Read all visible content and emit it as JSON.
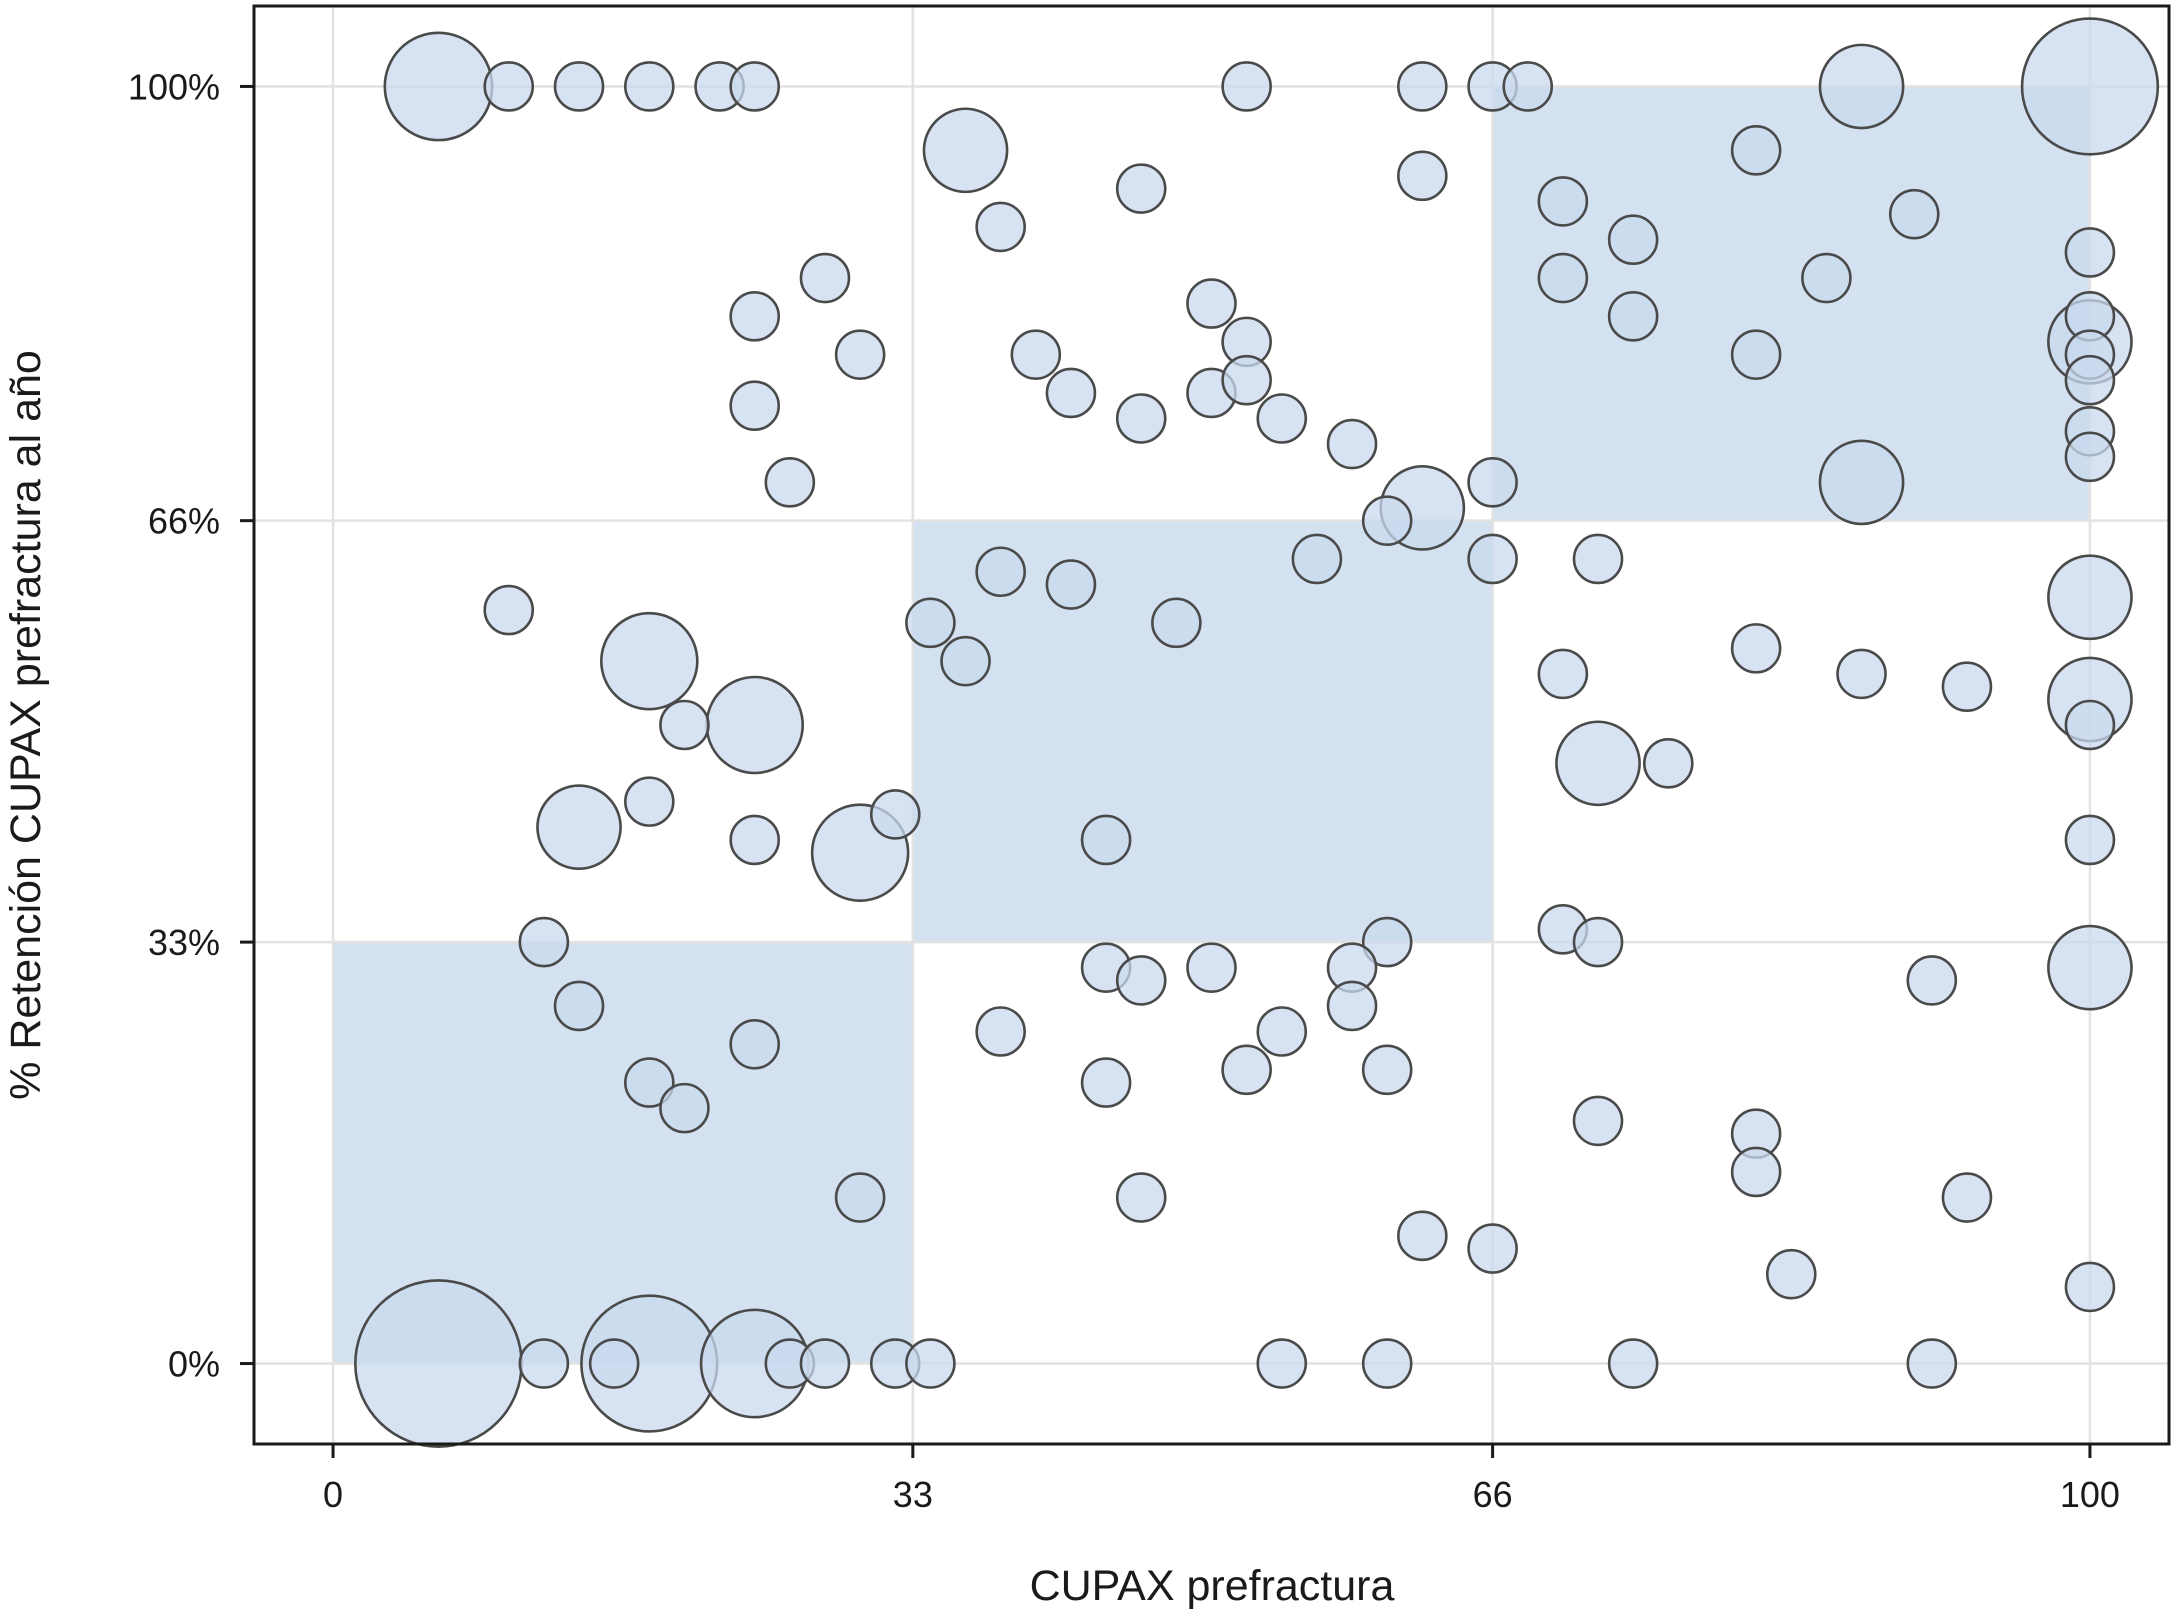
{
  "chart_data": {
    "type": "scatter",
    "subtype": "bubble",
    "xlabel": "CUPAX prefractura",
    "ylabel": "% Retención CUPAX prefractura al año",
    "xlim": [
      -4.5,
      104.5
    ],
    "ylim": [
      -6.3,
      106.3
    ],
    "x_ticks": [
      0,
      33,
      66,
      100
    ],
    "x_tick_labels": [
      "0",
      "33",
      "66",
      "100"
    ],
    "y_ticks": [
      0,
      33,
      66,
      100
    ],
    "y_tick_labels": [
      "0%",
      "33%",
      "66%",
      "100%"
    ],
    "grid": true,
    "legend": "none",
    "colors": {
      "bubble_fill": "#c9d9ee",
      "bubble_stroke": "#4a4a4a",
      "shaded_region": "#d4e1f1",
      "grid": "#e2e2e2"
    },
    "shaded_regions": [
      {
        "x": [
          0,
          33
        ],
        "y": [
          0,
          33
        ]
      },
      {
        "x": [
          33,
          66
        ],
        "y": [
          33,
          66
        ]
      },
      {
        "x": [
          66,
          100
        ],
        "y": [
          66,
          100
        ]
      }
    ],
    "points": [
      {
        "x": 6,
        "y": 100,
        "size": 5
      },
      {
        "x": 10,
        "y": 100,
        "size": 1
      },
      {
        "x": 14,
        "y": 100,
        "size": 1
      },
      {
        "x": 18,
        "y": 100,
        "size": 1
      },
      {
        "x": 22,
        "y": 100,
        "size": 1
      },
      {
        "x": 24,
        "y": 100,
        "size": 1
      },
      {
        "x": 52,
        "y": 100,
        "size": 1
      },
      {
        "x": 62,
        "y": 100,
        "size": 1
      },
      {
        "x": 66,
        "y": 100,
        "size": 1
      },
      {
        "x": 68,
        "y": 100,
        "size": 1
      },
      {
        "x": 87,
        "y": 100,
        "size": 3
      },
      {
        "x": 100,
        "y": 100,
        "size": 8
      },
      {
        "x": 36,
        "y": 95,
        "size": 3
      },
      {
        "x": 62,
        "y": 93,
        "size": 1
      },
      {
        "x": 81,
        "y": 95,
        "size": 1
      },
      {
        "x": 46,
        "y": 92,
        "size": 1
      },
      {
        "x": 70,
        "y": 91,
        "size": 1
      },
      {
        "x": 90,
        "y": 90,
        "size": 1
      },
      {
        "x": 38,
        "y": 89,
        "size": 1
      },
      {
        "x": 74,
        "y": 88,
        "size": 1
      },
      {
        "x": 100,
        "y": 87,
        "size": 1
      },
      {
        "x": 28,
        "y": 85,
        "size": 1
      },
      {
        "x": 70,
        "y": 85,
        "size": 1
      },
      {
        "x": 85,
        "y": 85,
        "size": 1
      },
      {
        "x": 24,
        "y": 82,
        "size": 1
      },
      {
        "x": 50,
        "y": 83,
        "size": 1
      },
      {
        "x": 74,
        "y": 82,
        "size": 1
      },
      {
        "x": 100,
        "y": 82,
        "size": 1
      },
      {
        "x": 100,
        "y": 80,
        "size": 3
      },
      {
        "x": 30,
        "y": 79,
        "size": 1
      },
      {
        "x": 40,
        "y": 79,
        "size": 1
      },
      {
        "x": 52,
        "y": 80,
        "size": 1
      },
      {
        "x": 81,
        "y": 79,
        "size": 1
      },
      {
        "x": 100,
        "y": 79,
        "size": 1
      },
      {
        "x": 42,
        "y": 76,
        "size": 1
      },
      {
        "x": 50,
        "y": 76,
        "size": 1
      },
      {
        "x": 52,
        "y": 77,
        "size": 1
      },
      {
        "x": 100,
        "y": 77,
        "size": 1
      },
      {
        "x": 24,
        "y": 75,
        "size": 1
      },
      {
        "x": 46,
        "y": 74,
        "size": 1
      },
      {
        "x": 54,
        "y": 74,
        "size": 1
      },
      {
        "x": 100,
        "y": 73,
        "size": 1
      },
      {
        "x": 58,
        "y": 72,
        "size": 1
      },
      {
        "x": 100,
        "y": 71,
        "size": 1
      },
      {
        "x": 66,
        "y": 69,
        "size": 1
      },
      {
        "x": 26,
        "y": 69,
        "size": 1
      },
      {
        "x": 87,
        "y": 69,
        "size": 3
      },
      {
        "x": 62,
        "y": 67,
        "size": 3
      },
      {
        "x": 60,
        "y": 66,
        "size": 1
      },
      {
        "x": 56,
        "y": 63,
        "size": 1
      },
      {
        "x": 66,
        "y": 63,
        "size": 1
      },
      {
        "x": 72,
        "y": 63,
        "size": 1
      },
      {
        "x": 38,
        "y": 62,
        "size": 1
      },
      {
        "x": 42,
        "y": 61,
        "size": 1
      },
      {
        "x": 10,
        "y": 59,
        "size": 1
      },
      {
        "x": 100,
        "y": 60,
        "size": 3
      },
      {
        "x": 34,
        "y": 58,
        "size": 1
      },
      {
        "x": 48,
        "y": 58,
        "size": 1
      },
      {
        "x": 81,
        "y": 56,
        "size": 1
      },
      {
        "x": 18,
        "y": 55,
        "size": 4
      },
      {
        "x": 36,
        "y": 55,
        "size": 1
      },
      {
        "x": 70,
        "y": 54,
        "size": 1
      },
      {
        "x": 87,
        "y": 54,
        "size": 1
      },
      {
        "x": 93,
        "y": 53,
        "size": 1
      },
      {
        "x": 100,
        "y": 52,
        "size": 3
      },
      {
        "x": 20,
        "y": 50,
        "size": 1
      },
      {
        "x": 24,
        "y": 50,
        "size": 4
      },
      {
        "x": 100,
        "y": 50,
        "size": 1
      },
      {
        "x": 72,
        "y": 47,
        "size": 3
      },
      {
        "x": 76,
        "y": 47,
        "size": 1
      },
      {
        "x": 18,
        "y": 44,
        "size": 1
      },
      {
        "x": 14,
        "y": 42,
        "size": 3
      },
      {
        "x": 32,
        "y": 43,
        "size": 1
      },
      {
        "x": 24,
        "y": 41,
        "size": 1
      },
      {
        "x": 30,
        "y": 40,
        "size": 4
      },
      {
        "x": 44,
        "y": 41,
        "size": 1
      },
      {
        "x": 100,
        "y": 41,
        "size": 1
      },
      {
        "x": 12,
        "y": 33,
        "size": 1
      },
      {
        "x": 60,
        "y": 33,
        "size": 1
      },
      {
        "x": 70,
        "y": 34,
        "size": 1
      },
      {
        "x": 72,
        "y": 33,
        "size": 1
      },
      {
        "x": 44,
        "y": 31,
        "size": 1
      },
      {
        "x": 50,
        "y": 31,
        "size": 1
      },
      {
        "x": 58,
        "y": 31,
        "size": 1
      },
      {
        "x": 100,
        "y": 31,
        "size": 3
      },
      {
        "x": 46,
        "y": 30,
        "size": 1
      },
      {
        "x": 91,
        "y": 30,
        "size": 1
      },
      {
        "x": 14,
        "y": 28,
        "size": 1
      },
      {
        "x": 58,
        "y": 28,
        "size": 1
      },
      {
        "x": 38,
        "y": 26,
        "size": 1
      },
      {
        "x": 54,
        "y": 26,
        "size": 1
      },
      {
        "x": 24,
        "y": 25,
        "size": 1
      },
      {
        "x": 60,
        "y": 23,
        "size": 1
      },
      {
        "x": 44,
        "y": 22,
        "size": 1
      },
      {
        "x": 52,
        "y": 23,
        "size": 1
      },
      {
        "x": 18,
        "y": 22,
        "size": 1
      },
      {
        "x": 20,
        "y": 20,
        "size": 1
      },
      {
        "x": 72,
        "y": 19,
        "size": 1
      },
      {
        "x": 81,
        "y": 18,
        "size": 1
      },
      {
        "x": 81,
        "y": 15,
        "size": 1
      },
      {
        "x": 30,
        "y": 13,
        "size": 1
      },
      {
        "x": 46,
        "y": 13,
        "size": 1
      },
      {
        "x": 93,
        "y": 13,
        "size": 1
      },
      {
        "x": 62,
        "y": 10,
        "size": 1
      },
      {
        "x": 66,
        "y": 9,
        "size": 1
      },
      {
        "x": 83,
        "y": 7,
        "size": 1
      },
      {
        "x": 100,
        "y": 6,
        "size": 1
      },
      {
        "x": 6,
        "y": 0,
        "size": 12
      },
      {
        "x": 12,
        "y": 0,
        "size": 1
      },
      {
        "x": 16,
        "y": 0,
        "size": 1
      },
      {
        "x": 18,
        "y": 0,
        "size": 8
      },
      {
        "x": 24,
        "y": 0,
        "size": 5
      },
      {
        "x": 26,
        "y": 0,
        "size": 1
      },
      {
        "x": 28,
        "y": 0,
        "size": 1
      },
      {
        "x": 32,
        "y": 0,
        "size": 1
      },
      {
        "x": 34,
        "y": 0,
        "size": 1
      },
      {
        "x": 54,
        "y": 0,
        "size": 1
      },
      {
        "x": 60,
        "y": 0,
        "size": 1
      },
      {
        "x": 74,
        "y": 0,
        "size": 1
      },
      {
        "x": 91,
        "y": 0,
        "size": 1
      }
    ]
  }
}
